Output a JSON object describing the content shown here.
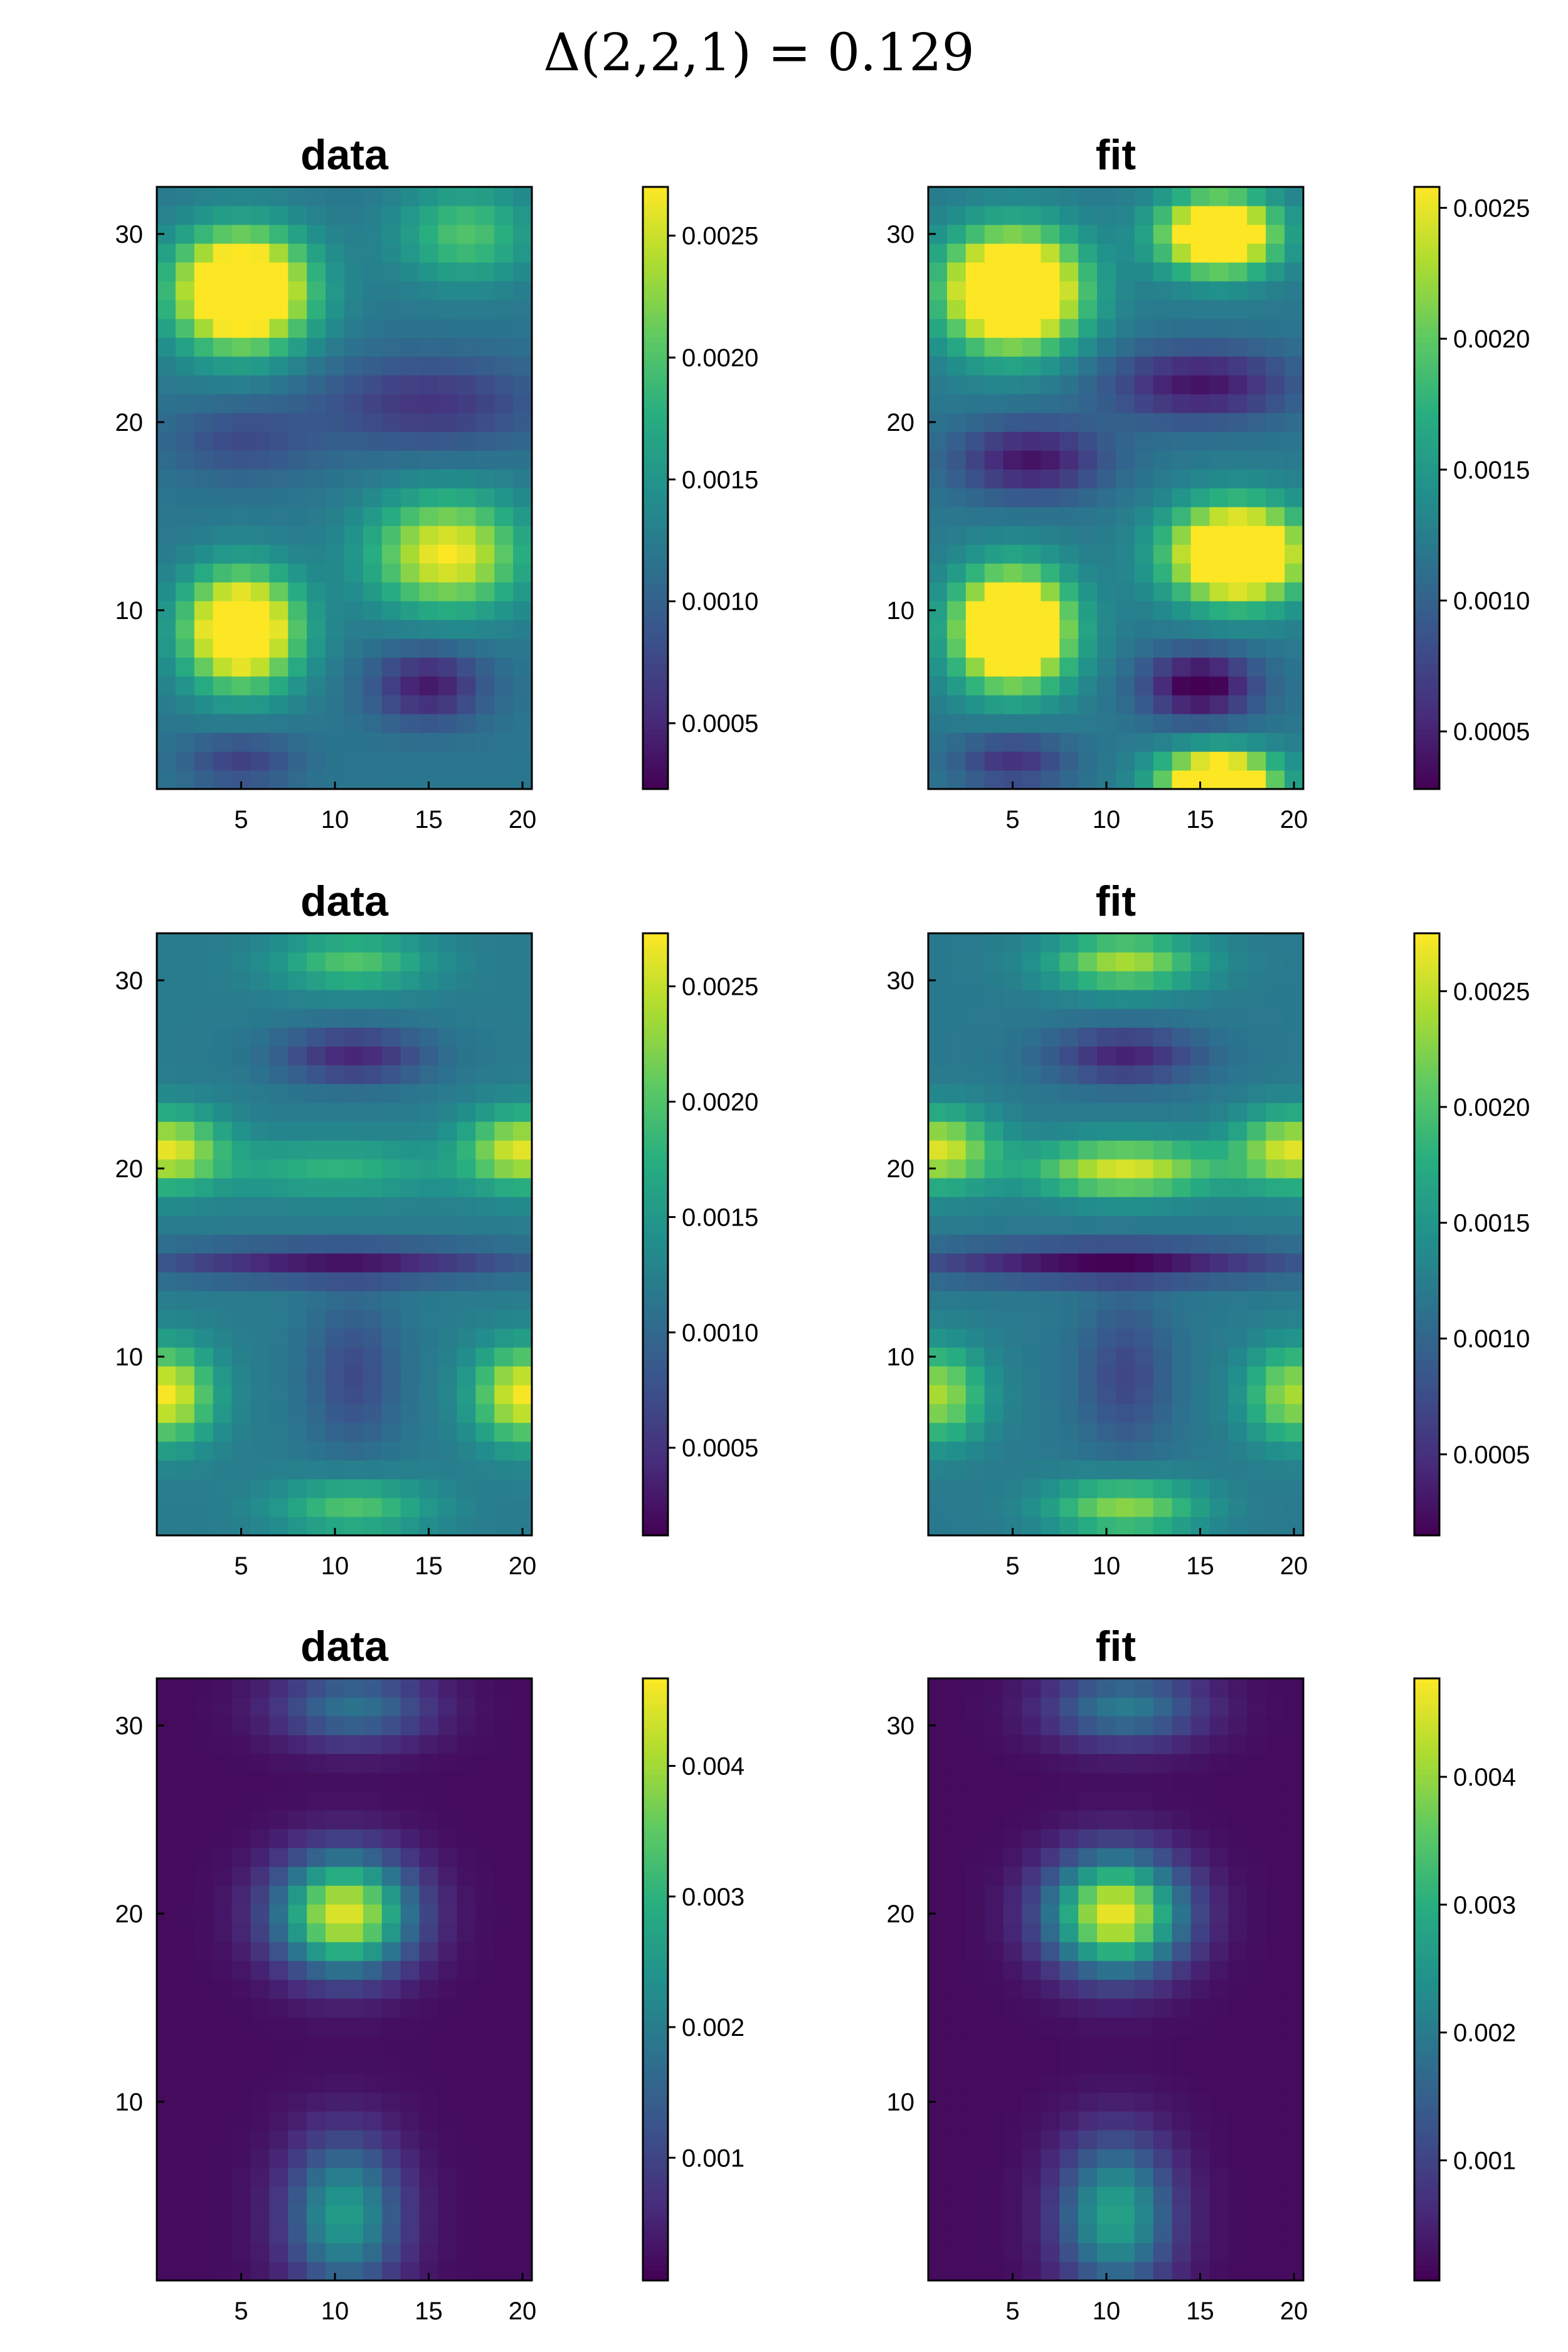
{
  "title": "Δ(2,2,1) = 0.129",
  "colormap": [
    "#440154",
    "#472d7b",
    "#3b528b",
    "#2c728e",
    "#21918c",
    "#28ae80",
    "#5ec962",
    "#addc30",
    "#fde725"
  ],
  "chart_data": [
    {
      "type": "heatmap",
      "title": "data",
      "x_ticks": [
        "5",
        "10",
        "15",
        "20"
      ],
      "y_ticks": [
        "10",
        "20",
        "30"
      ],
      "xlim": [
        0.5,
        20.5
      ],
      "ylim": [
        0.5,
        32.5
      ],
      "colorbar_range": [
        0.00023,
        0.0027
      ],
      "colorbar_ticks": [
        "0.0005",
        "0.0010",
        "0.0015",
        "0.0020",
        "0.0025"
      ],
      "field": {
        "blobs": [
          [
            5,
            27,
            3.5,
            3,
            0.0025
          ],
          [
            5,
            9,
            3,
            3,
            0.0022
          ],
          [
            16,
            13,
            4,
            3,
            0.0015
          ],
          [
            17,
            30,
            3.5,
            2.5,
            0.0008
          ]
        ],
        "holes": [
          [
            15,
            6,
            3,
            2,
            -0.0008
          ],
          [
            15,
            21,
            6,
            2.5,
            -0.0006
          ],
          [
            5,
            19,
            4,
            2,
            -0.0004
          ],
          [
            5,
            2,
            3,
            1.5,
            -0.0005
          ]
        ],
        "base": 0.0012
      }
    },
    {
      "type": "heatmap",
      "title": "fit",
      "x_ticks": [
        "5",
        "10",
        "15",
        "20"
      ],
      "y_ticks": [
        "10",
        "20",
        "30"
      ],
      "xlim": [
        0.5,
        20.5
      ],
      "ylim": [
        0.5,
        32.5
      ],
      "colorbar_range": [
        0.00028,
        0.00258
      ],
      "colorbar_ticks": [
        "0.0005",
        "0.0010",
        "0.0015",
        "0.0020",
        "0.0025"
      ],
      "field": {
        "blobs": [
          [
            5,
            27,
            3.5,
            3,
            0.0025
          ],
          [
            5,
            9,
            3,
            3,
            0.0024
          ],
          [
            17,
            13,
            3.5,
            2.5,
            0.0024
          ],
          [
            16,
            30,
            3,
            2,
            0.0022
          ],
          [
            16,
            1,
            3,
            1.5,
            0.0022
          ]
        ],
        "holes": [
          [
            15,
            6,
            3,
            1.8,
            -0.001
          ],
          [
            15,
            22,
            5,
            2,
            -0.0008
          ],
          [
            6,
            18,
            4,
            2,
            -0.0008
          ],
          [
            5,
            2,
            3,
            1.5,
            -0.0006
          ]
        ],
        "base": 0.0012
      }
    },
    {
      "type": "heatmap",
      "title": "data",
      "x_ticks": [
        "5",
        "10",
        "15",
        "20"
      ],
      "y_ticks": [
        "10",
        "20",
        "30"
      ],
      "xlim": [
        0.5,
        20.5
      ],
      "ylim": [
        0.5,
        32.5
      ],
      "colorbar_range": [
        0.00012,
        0.00273
      ],
      "colorbar_ticks": [
        "0.0005",
        "0.0010",
        "0.0015",
        "0.0020",
        "0.0025"
      ],
      "field": {
        "blobs": [
          [
            1,
            21,
            3,
            2,
            0.0014
          ],
          [
            20,
            21,
            3,
            2,
            0.0014
          ],
          [
            10,
            20,
            6,
            1.5,
            0.0006
          ],
          [
            1,
            8,
            2.5,
            2.5,
            0.0015
          ],
          [
            20,
            8,
            2.5,
            2.5,
            0.0015
          ],
          [
            11,
            31,
            4,
            1.5,
            0.0008
          ],
          [
            11,
            2,
            4,
            1.5,
            0.0008
          ]
        ],
        "holes": [
          [
            11,
            26,
            4,
            1.5,
            -0.0008
          ],
          [
            10,
            15,
            10,
            1,
            -0.0009
          ],
          [
            11,
            9,
            2.5,
            4,
            -0.0005
          ]
        ],
        "base": 0.0012
      }
    },
    {
      "type": "heatmap",
      "title": "fit",
      "x_ticks": [
        "5",
        "10",
        "15",
        "20"
      ],
      "y_ticks": [
        "10",
        "20",
        "30"
      ],
      "xlim": [
        0.5,
        20.5
      ],
      "ylim": [
        0.5,
        32.5
      ],
      "colorbar_range": [
        0.00015,
        0.00275
      ],
      "colorbar_ticks": [
        "0.0005",
        "0.0010",
        "0.0015",
        "0.0020",
        "0.0025"
      ],
      "field": {
        "blobs": [
          [
            1,
            21,
            3,
            2,
            0.0014
          ],
          [
            20,
            21,
            3,
            2,
            0.0014
          ],
          [
            11,
            20,
            5,
            1.5,
            0.0014
          ],
          [
            1,
            8,
            2.5,
            2.5,
            0.0012
          ],
          [
            20,
            8,
            2.5,
            2.5,
            0.0012
          ],
          [
            11,
            31,
            4,
            1.5,
            0.0012
          ],
          [
            11,
            2,
            4,
            1.5,
            0.0011
          ]
        ],
        "holes": [
          [
            11,
            26,
            4,
            1.5,
            -0.0008
          ],
          [
            10,
            15,
            10,
            1,
            -0.001
          ],
          [
            11,
            9,
            2.5,
            4,
            -0.0005
          ]
        ],
        "base": 0.0012
      }
    },
    {
      "type": "heatmap",
      "title": "data",
      "x_ticks": [
        "5",
        "10",
        "15",
        "20"
      ],
      "y_ticks": [
        "10",
        "20",
        "30"
      ],
      "xlim": [
        0.5,
        20.5
      ],
      "ylim": [
        0.5,
        32.5
      ],
      "colorbar_range": [
        6e-05,
        0.00467
      ],
      "colorbar_ticks": [
        "0.001",
        "0.002",
        "0.003",
        "0.004"
      ],
      "field": {
        "blobs": [
          [
            10.5,
            20,
            3.5,
            3,
            0.0043
          ],
          [
            10.5,
            4,
            3,
            4,
            0.0024
          ],
          [
            11,
            31,
            4,
            2,
            0.0016
          ]
        ],
        "holes": [],
        "base": 0.0002
      }
    },
    {
      "type": "heatmap",
      "title": "fit",
      "x_ticks": [
        "5",
        "10",
        "15",
        "20"
      ],
      "y_ticks": [
        "10",
        "20",
        "30"
      ],
      "xlim": [
        0.5,
        20.5
      ],
      "ylim": [
        0.5,
        32.5
      ],
      "colorbar_range": [
        6e-05,
        0.00477
      ],
      "colorbar_ticks": [
        "0.001",
        "0.002",
        "0.003",
        "0.004"
      ],
      "field": {
        "blobs": [
          [
            10.5,
            20,
            3.5,
            3,
            0.0045
          ],
          [
            10.5,
            4,
            3,
            4,
            0.0026
          ],
          [
            11,
            31,
            4,
            2,
            0.0018
          ]
        ],
        "holes": [],
        "base": 0.0002
      }
    }
  ]
}
